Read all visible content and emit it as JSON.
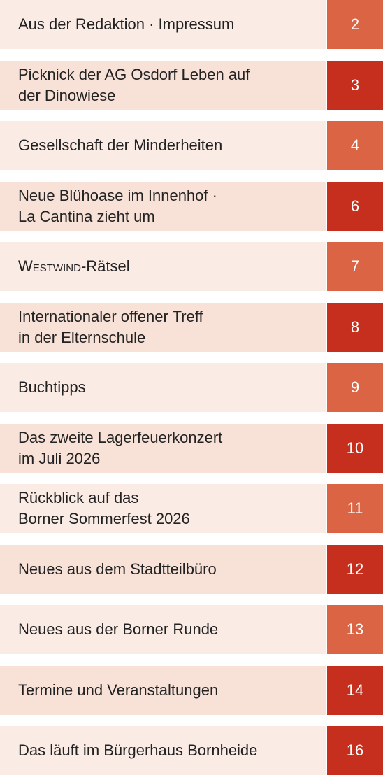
{
  "toc": {
    "items": [
      {
        "lines": [
          [
            {
              "text": "Aus der Redaktion · Impressum"
            }
          ]
        ],
        "page": "2"
      },
      {
        "lines": [
          [
            {
              "text": "Picknick der AG Osdorf Leben auf"
            }
          ],
          [
            {
              "text": "der Dinowiese"
            }
          ]
        ],
        "page": "3"
      },
      {
        "lines": [
          [
            {
              "text": "Gesellschaft der Minderheiten"
            }
          ]
        ],
        "page": "4"
      },
      {
        "lines": [
          [
            {
              "text": "Neue Blühoase im Innenhof ·"
            }
          ],
          [
            {
              "text": "La Cantina zieht um"
            }
          ]
        ],
        "page": "6"
      },
      {
        "lines": [
          [
            {
              "text": "Westwind",
              "style": "small-caps"
            },
            {
              "text": "-Rätsel"
            }
          ]
        ],
        "page": "7"
      },
      {
        "lines": [
          [
            {
              "text": "Internationaler offener Treff"
            }
          ],
          [
            {
              "text": "in der Elternschule"
            }
          ]
        ],
        "page": "8"
      },
      {
        "lines": [
          [
            {
              "text": "Buchtipps"
            }
          ]
        ],
        "page": "9"
      },
      {
        "lines": [
          [
            {
              "text": "Das zweite Lagerfeuerkonzert"
            }
          ],
          [
            {
              "text": "im Juli 2026"
            }
          ]
        ],
        "page": "10"
      },
      {
        "lines": [
          [
            {
              "text": "Rückblick auf das"
            }
          ],
          [
            {
              "text": "Borner Sommerfest 2026"
            }
          ]
        ],
        "page": "11"
      },
      {
        "lines": [
          [
            {
              "text": "Neues aus dem Stadtteilbüro"
            }
          ]
        ],
        "page": "12"
      },
      {
        "lines": [
          [
            {
              "text": "Neues aus der Borner Runde"
            }
          ]
        ],
        "page": "13"
      },
      {
        "lines": [
          [
            {
              "text": "Termine und Veranstaltungen"
            }
          ]
        ],
        "page": "14"
      },
      {
        "lines": [
          [
            {
              "text": "Das läuft im Bürgerhaus Bornheide"
            }
          ]
        ],
        "page": "16"
      }
    ]
  }
}
